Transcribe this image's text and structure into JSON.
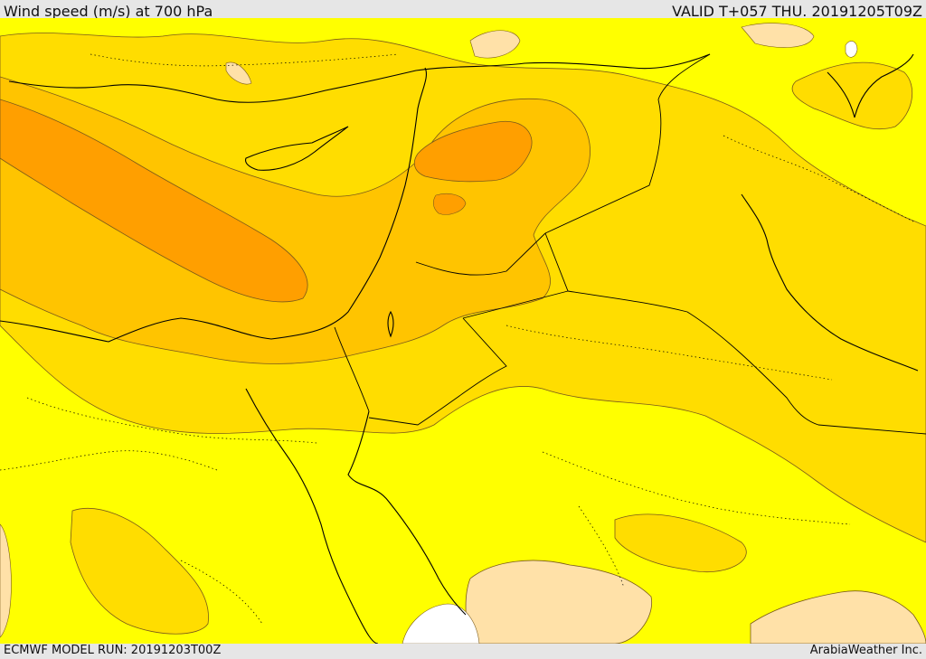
{
  "header": {
    "title": "Wind speed (m/s) at 700 hPa",
    "valid": "VALID T+057 THU. 20191205T09Z"
  },
  "footer": {
    "model_run": "ECMWF MODEL RUN: 20191203T00Z",
    "credit": "ArabiaWeather Inc."
  },
  "colors": {
    "background_light": "#ffff00",
    "band_1": "#ffdd00",
    "band_2": "#ffc400",
    "band_3": "#ff9f00",
    "low_wind": "#ffe1a8",
    "calm": "#ffffff",
    "contour": "#7a5a1a",
    "border": "#000000"
  }
}
